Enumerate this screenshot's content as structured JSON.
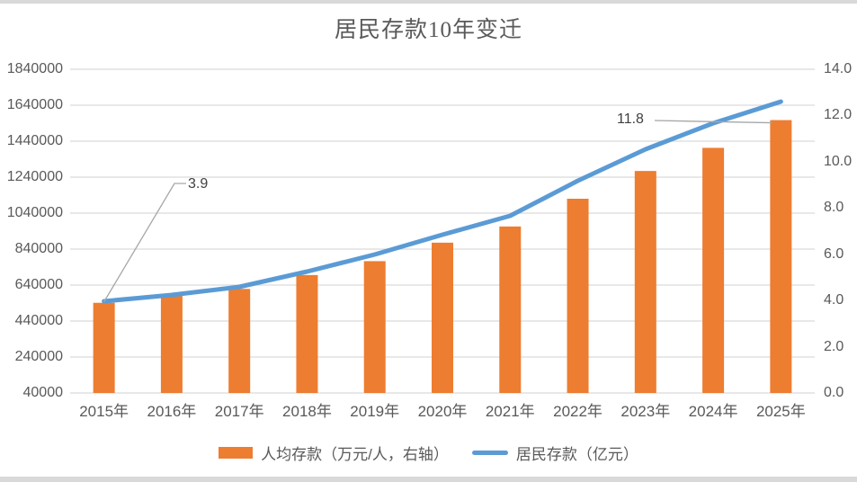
{
  "title": "居民存款10年变迁",
  "colors": {
    "bar": "#ED7D31",
    "line": "#5B9BD5",
    "gridline": "#D9D9D9",
    "axis_text": "#595959",
    "annotation_text": "#404040",
    "leader_line": "#A6A6A6",
    "background": "#FFFFFF",
    "border_strip": "#D9D9D9"
  },
  "chart_data": {
    "type": "combo",
    "title": "居民存款10年变迁",
    "categories": [
      "2015年",
      "2016年",
      "2017年",
      "2018年",
      "2019年",
      "2020年",
      "2021年",
      "2022年",
      "2023年",
      "2024年",
      "2025年"
    ],
    "series": [
      {
        "name": "人均存款（万元/人，右轴）",
        "type": "bar",
        "axis": "right",
        "color": "#ED7D31",
        "values": [
          3.9,
          4.2,
          4.5,
          5.1,
          5.7,
          6.5,
          7.2,
          8.4,
          9.6,
          10.6,
          11.8
        ]
      },
      {
        "name": "居民存款（亿元）",
        "type": "line",
        "axis": "left",
        "color": "#5B9BD5",
        "values": [
          550000,
          585000,
          630000,
          715000,
          810000,
          920000,
          1025000,
          1220000,
          1395000,
          1540000,
          1660000
        ]
      }
    ],
    "left_axis": {
      "labels_top_to_bottom": [
        "1840000",
        "1640000",
        "1440000",
        "1240000",
        "1040000",
        "840000",
        "640000",
        "440000",
        "240000",
        "40000"
      ],
      "min": 40000,
      "max": 1840000,
      "step": 200000
    },
    "right_axis": {
      "labels_top_to_bottom": [
        "14.0",
        "12.0",
        "10.0",
        "8.0",
        "6.0",
        "4.0",
        "2.0",
        "0.0"
      ],
      "min": 0.0,
      "max": 14.0,
      "step": 2.0
    },
    "annotations": [
      {
        "text": "3.9",
        "series": "人均存款（万元/人，右轴）",
        "category": "2015年",
        "value": 3.9
      },
      {
        "text": "11.8",
        "series": "人均存款（万元/人，右轴）",
        "category": "2025年",
        "value": 11.8
      }
    ],
    "legend_position": "bottom",
    "grid": true
  }
}
